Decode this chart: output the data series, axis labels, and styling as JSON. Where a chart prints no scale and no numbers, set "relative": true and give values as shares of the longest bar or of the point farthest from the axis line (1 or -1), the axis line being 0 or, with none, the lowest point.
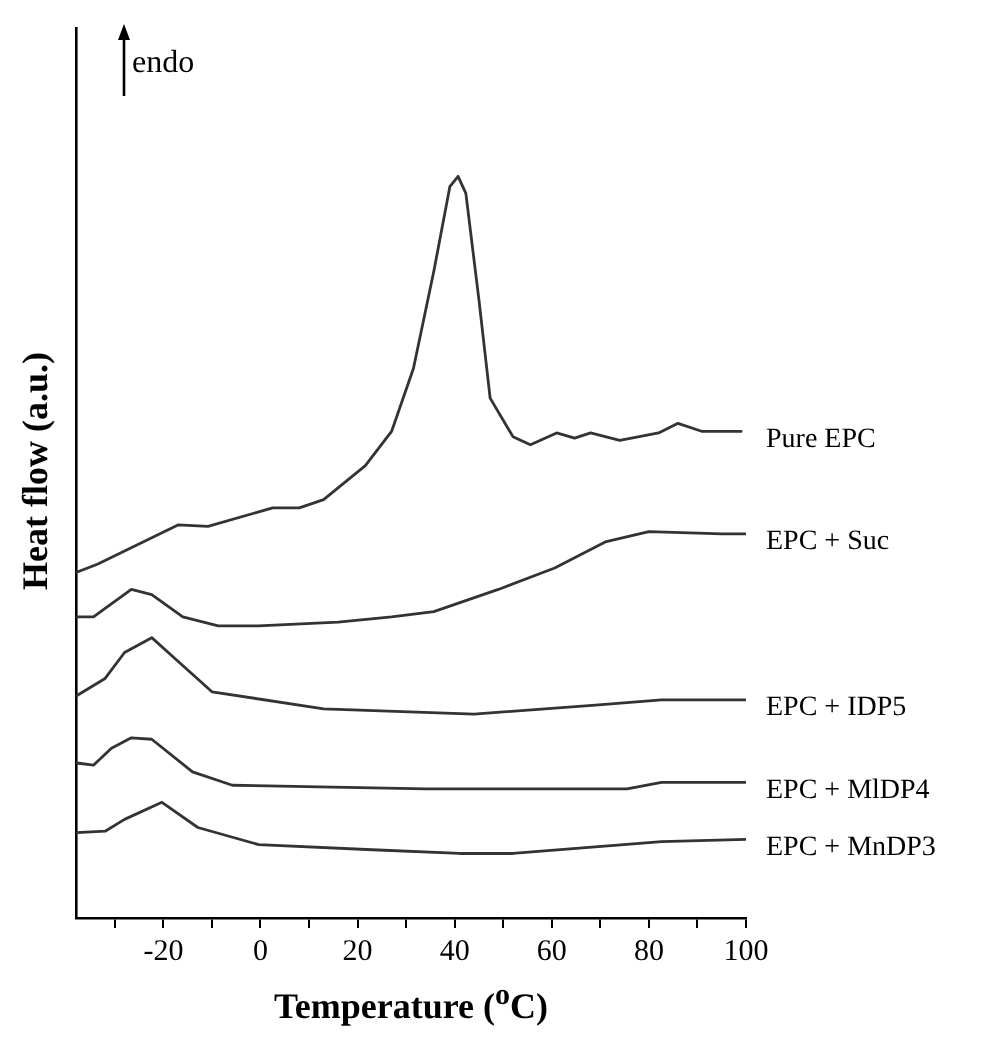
{
  "chart_data": {
    "type": "line",
    "xlabel": "Temperature ($^{o}$C)",
    "ylabel": "Heat flow (a.u.)",
    "annotations": [
      "endo"
    ],
    "relative": true,
    "legend": false,
    "grid": false,
    "marker": "none",
    "line_style": "solid",
    "tick_labels": "x",
    "xlim": [
      -38,
      100
    ],
    "xticks": [
      {
        "value": -30,
        "label": null
      },
      -20,
      {
        "value": -10,
        "label": null
      },
      0,
      {
        "value": 10,
        "label": null
      },
      20,
      {
        "value": 30,
        "label": null
      },
      40,
      {
        "value": 50,
        "label": null
      },
      60,
      {
        "value": 70,
        "label": null
      },
      80,
      {
        "value": 90,
        "label": null
      },
      100
    ],
    "series": [
      {
        "name": "Pure EPC",
        "color": "#333333",
        "x": [
          -38,
          -33.6,
          -17,
          -10.8,
          2.5,
          8,
          13,
          21.6,
          27,
          31.5,
          35.7,
          39,
          40.7,
          42.3,
          45,
          47.3,
          52,
          55.6,
          61,
          64.7,
          68,
          74,
          82,
          86,
          91,
          99
        ],
        "values": [
          0.466,
          0.477,
          0.53,
          0.528,
          0.553,
          0.553,
          0.564,
          0.61,
          0.656,
          0.741,
          0.872,
          0.986,
          1,
          0.977,
          0.833,
          0.701,
          0.649,
          0.638,
          0.654,
          0.647,
          0.654,
          0.644,
          0.654,
          0.667,
          0.656,
          0.656
        ]
      },
      {
        "name": "EPC + Suc",
        "color": "#333333",
        "x": [
          -37.8,
          -34.4,
          -26.6,
          -22.4,
          -16,
          -8.7,
          -0.4,
          16,
          27,
          35.7,
          49,
          60.6,
          71,
          80,
          95,
          100
        ],
        "values": [
          0.406,
          0.406,
          0.443,
          0.436,
          0.406,
          0.394,
          0.394,
          0.399,
          0.406,
          0.413,
          0.443,
          0.472,
          0.507,
          0.521,
          0.518,
          0.518
        ]
      },
      {
        "name": "EPC + IDP5",
        "color": "#333333",
        "x": [
          -37.8,
          -32,
          -28,
          -22.4,
          -17.8,
          -10,
          13,
          44,
          69,
          82.6,
          95,
          100
        ],
        "values": [
          0.3,
          0.323,
          0.358,
          0.378,
          0.351,
          0.305,
          0.282,
          0.275,
          0.287,
          0.294,
          0.294,
          0.294
        ]
      },
      {
        "name": "EPC + MlDP4",
        "color": "#333333",
        "x": [
          -37.8,
          -34.4,
          -30.7,
          -26.6,
          -22.4,
          -14,
          -5.8,
          34,
          75.5,
          82.6,
          95,
          100
        ],
        "values": [
          0.209,
          0.206,
          0.229,
          0.243,
          0.241,
          0.197,
          0.179,
          0.174,
          0.174,
          0.183,
          0.183,
          0.183
        ]
      },
      {
        "name": "EPC + MnDP3",
        "color": "#333333",
        "x": [
          -37.8,
          -32,
          -28,
          -20.3,
          -12.9,
          -0.4,
          23,
          41,
          52,
          82.6,
          100
        ],
        "values": [
          0.115,
          0.117,
          0.133,
          0.156,
          0.122,
          0.099,
          0.092,
          0.087,
          0.087,
          0.103,
          0.106
        ]
      }
    ]
  }
}
